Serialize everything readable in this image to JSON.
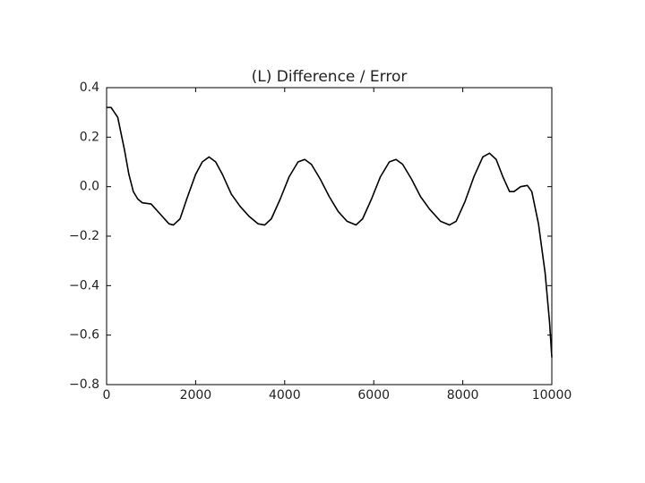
{
  "chart_data": {
    "type": "line",
    "title": "(L) Difference / Error",
    "x": [
      0,
      100,
      250,
      400,
      500,
      600,
      700,
      800,
      1000,
      1200,
      1400,
      1500,
      1650,
      1800,
      2000,
      2150,
      2300,
      2450,
      2600,
      2800,
      3000,
      3200,
      3400,
      3550,
      3700,
      3900,
      4100,
      4300,
      4450,
      4600,
      4800,
      5000,
      5200,
      5400,
      5600,
      5750,
      5950,
      6150,
      6350,
      6500,
      6650,
      6850,
      7050,
      7250,
      7500,
      7700,
      7850,
      8050,
      8250,
      8450,
      8600,
      8750,
      8900,
      9050,
      9150,
      9300,
      9450,
      9550,
      9700,
      9850,
      9950,
      10000
    ],
    "values": [
      0.32,
      0.32,
      0.28,
      0.15,
      0.05,
      -0.02,
      -0.05,
      -0.065,
      -0.07,
      -0.11,
      -0.15,
      -0.155,
      -0.13,
      -0.05,
      0.05,
      0.1,
      0.12,
      0.1,
      0.05,
      -0.03,
      -0.08,
      -0.12,
      -0.15,
      -0.155,
      -0.13,
      -0.05,
      0.04,
      0.1,
      0.11,
      0.09,
      0.03,
      -0.04,
      -0.1,
      -0.14,
      -0.155,
      -0.13,
      -0.05,
      0.04,
      0.1,
      0.11,
      0.09,
      0.03,
      -0.04,
      -0.09,
      -0.14,
      -0.155,
      -0.14,
      -0.06,
      0.04,
      0.12,
      0.135,
      0.11,
      0.04,
      -0.02,
      -0.02,
      0.0,
      0.005,
      -0.02,
      -0.15,
      -0.35,
      -0.55,
      -0.69
    ],
    "color": "#000000",
    "xlim": [
      0,
      10000
    ],
    "xticks": [
      0,
      2000,
      4000,
      6000,
      8000,
      10000
    ],
    "ylim": [
      -0.8,
      0.4
    ],
    "yticks": [
      {
        "value": -0.8,
        "label": "−0.8"
      },
      {
        "value": -0.6,
        "label": "−0.6"
      },
      {
        "value": -0.4,
        "label": "−0.4"
      },
      {
        "value": -0.2,
        "label": "−0.2"
      },
      {
        "value": 0,
        "label": "0.0"
      },
      0.2,
      0.4
    ],
    "grid": false
  }
}
